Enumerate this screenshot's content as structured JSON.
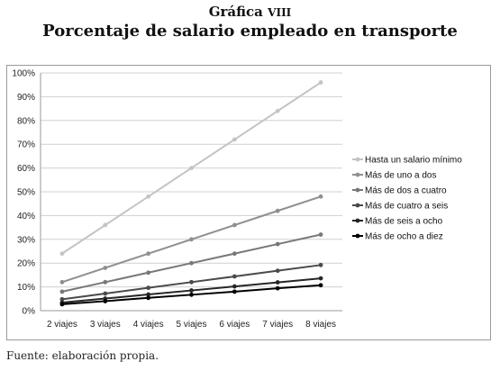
{
  "header": {
    "label": "Gráfica",
    "label_numeral": "VIII",
    "title": "Porcentaje de salario empleado en transporte"
  },
  "source": "Fuente: elaboración propia.",
  "chart_data": {
    "type": "line",
    "title": "",
    "xlabel": "",
    "ylabel": "",
    "categories": [
      "2 viajes",
      "3 viajes",
      "4 viajes",
      "5 viajes",
      "6 viajes",
      "7 viajes",
      "8 viajes"
    ],
    "ylim": [
      0,
      100
    ],
    "yticks": [
      "0%",
      "10%",
      "20%",
      "30%",
      "40%",
      "50%",
      "60%",
      "70%",
      "80%",
      "90%",
      "100%"
    ],
    "grid": true,
    "legend_position": "right",
    "series": [
      {
        "name": "Hasta un salario mínimo",
        "color": "#c4c4c4",
        "values": [
          24,
          36,
          48,
          60,
          72,
          84,
          96
        ]
      },
      {
        "name": "Más de uno a dos",
        "color": "#8f8f8f",
        "values": [
          12,
          18,
          24,
          30,
          36,
          42,
          48
        ]
      },
      {
        "name": "Más de dos a cuatro",
        "color": "#787878",
        "values": [
          8,
          12,
          16,
          20,
          24,
          28,
          32
        ]
      },
      {
        "name": "Más de cuatro a seis",
        "color": "#4a4a4a",
        "values": [
          4.8,
          7.2,
          9.6,
          12,
          14.4,
          16.8,
          19.2
        ]
      },
      {
        "name": "Más de seis a ocho",
        "color": "#262626",
        "values": [
          3.4,
          5.1,
          6.8,
          8.5,
          10.2,
          11.9,
          13.6
        ]
      },
      {
        "name": "Más de ocho a diez",
        "color": "#000000",
        "values": [
          2.7,
          4.0,
          5.4,
          6.7,
          8.0,
          9.4,
          10.7
        ]
      }
    ]
  }
}
